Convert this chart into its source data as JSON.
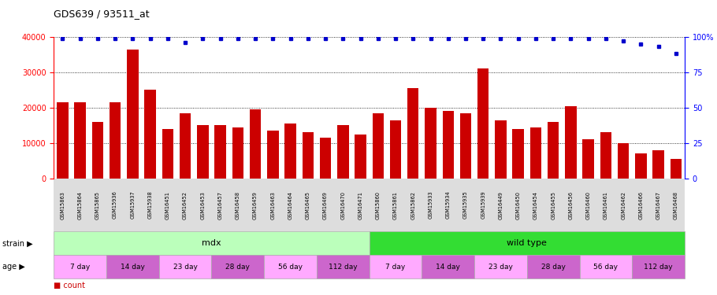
{
  "title": "GDS639 / 93511_at",
  "samples": [
    "GSM15863",
    "GSM15864",
    "GSM15865",
    "GSM15936",
    "GSM15937",
    "GSM15938",
    "GSM16451",
    "GSM16452",
    "GSM16453",
    "GSM16457",
    "GSM16458",
    "GSM16459",
    "GSM16463",
    "GSM16464",
    "GSM16465",
    "GSM16469",
    "GSM16470",
    "GSM16471",
    "GSM15860",
    "GSM15861",
    "GSM15862",
    "GSM15933",
    "GSM15934",
    "GSM15935",
    "GSM15939",
    "GSM16449",
    "GSM16450",
    "GSM16454",
    "GSM16455",
    "GSM16456",
    "GSM16460",
    "GSM16461",
    "GSM16462",
    "GSM16466",
    "GSM16467",
    "GSM16468"
  ],
  "counts": [
    21500,
    21500,
    16000,
    21500,
    36500,
    25000,
    14000,
    18500,
    15000,
    15000,
    14500,
    19500,
    13500,
    15500,
    13000,
    11500,
    15000,
    12500,
    18500,
    16500,
    25500,
    20000,
    19000,
    18500,
    31000,
    16500,
    14000,
    14500,
    16000,
    20500,
    11000,
    13000,
    10000,
    7000,
    8000,
    5500
  ],
  "percentile_ranks": [
    99,
    99,
    99,
    99,
    99,
    99,
    99,
    96,
    99,
    99,
    99,
    99,
    99,
    99,
    99,
    99,
    99,
    99,
    99,
    99,
    99,
    99,
    99,
    99,
    99,
    99,
    99,
    99,
    99,
    99,
    99,
    99,
    97,
    95,
    93,
    88
  ],
  "bar_color": "#cc0000",
  "dot_color": "#0000cc",
  "ylim_left": [
    0,
    40000
  ],
  "ylim_right": [
    0,
    100
  ],
  "yticks_left": [
    0,
    10000,
    20000,
    30000,
    40000
  ],
  "ytick_labels_left": [
    "0",
    "10000",
    "20000",
    "30000",
    "40000"
  ],
  "yticks_right": [
    0,
    25,
    50,
    75,
    100
  ],
  "ytick_labels_right": [
    "0",
    "25",
    "50",
    "75",
    "100%"
  ],
  "strain_mdx_label": "mdx",
  "strain_wt_label": "wild type",
  "strain_mdx_color": "#bbffbb",
  "strain_wt_color": "#33dd33",
  "age_groups": [
    {
      "label": "7 day",
      "color": "#ffaaff"
    },
    {
      "label": "14 day",
      "color": "#cc66cc"
    },
    {
      "label": "23 day",
      "color": "#ffaaff"
    },
    {
      "label": "28 day",
      "color": "#cc66cc"
    },
    {
      "label": "56 day",
      "color": "#ffaaff"
    },
    {
      "label": "112 day",
      "color": "#cc66cc"
    },
    {
      "label": "7 day",
      "color": "#ffaaff"
    },
    {
      "label": "14 day",
      "color": "#cc66cc"
    },
    {
      "label": "23 day",
      "color": "#ffaaff"
    },
    {
      "label": "28 day",
      "color": "#cc66cc"
    },
    {
      "label": "56 day",
      "color": "#ffaaff"
    },
    {
      "label": "112 day",
      "color": "#cc66cc"
    }
  ],
  "background_color": "#ffffff",
  "plot_bg_color": "#ffffff",
  "xticklabel_bg": "#dddddd"
}
